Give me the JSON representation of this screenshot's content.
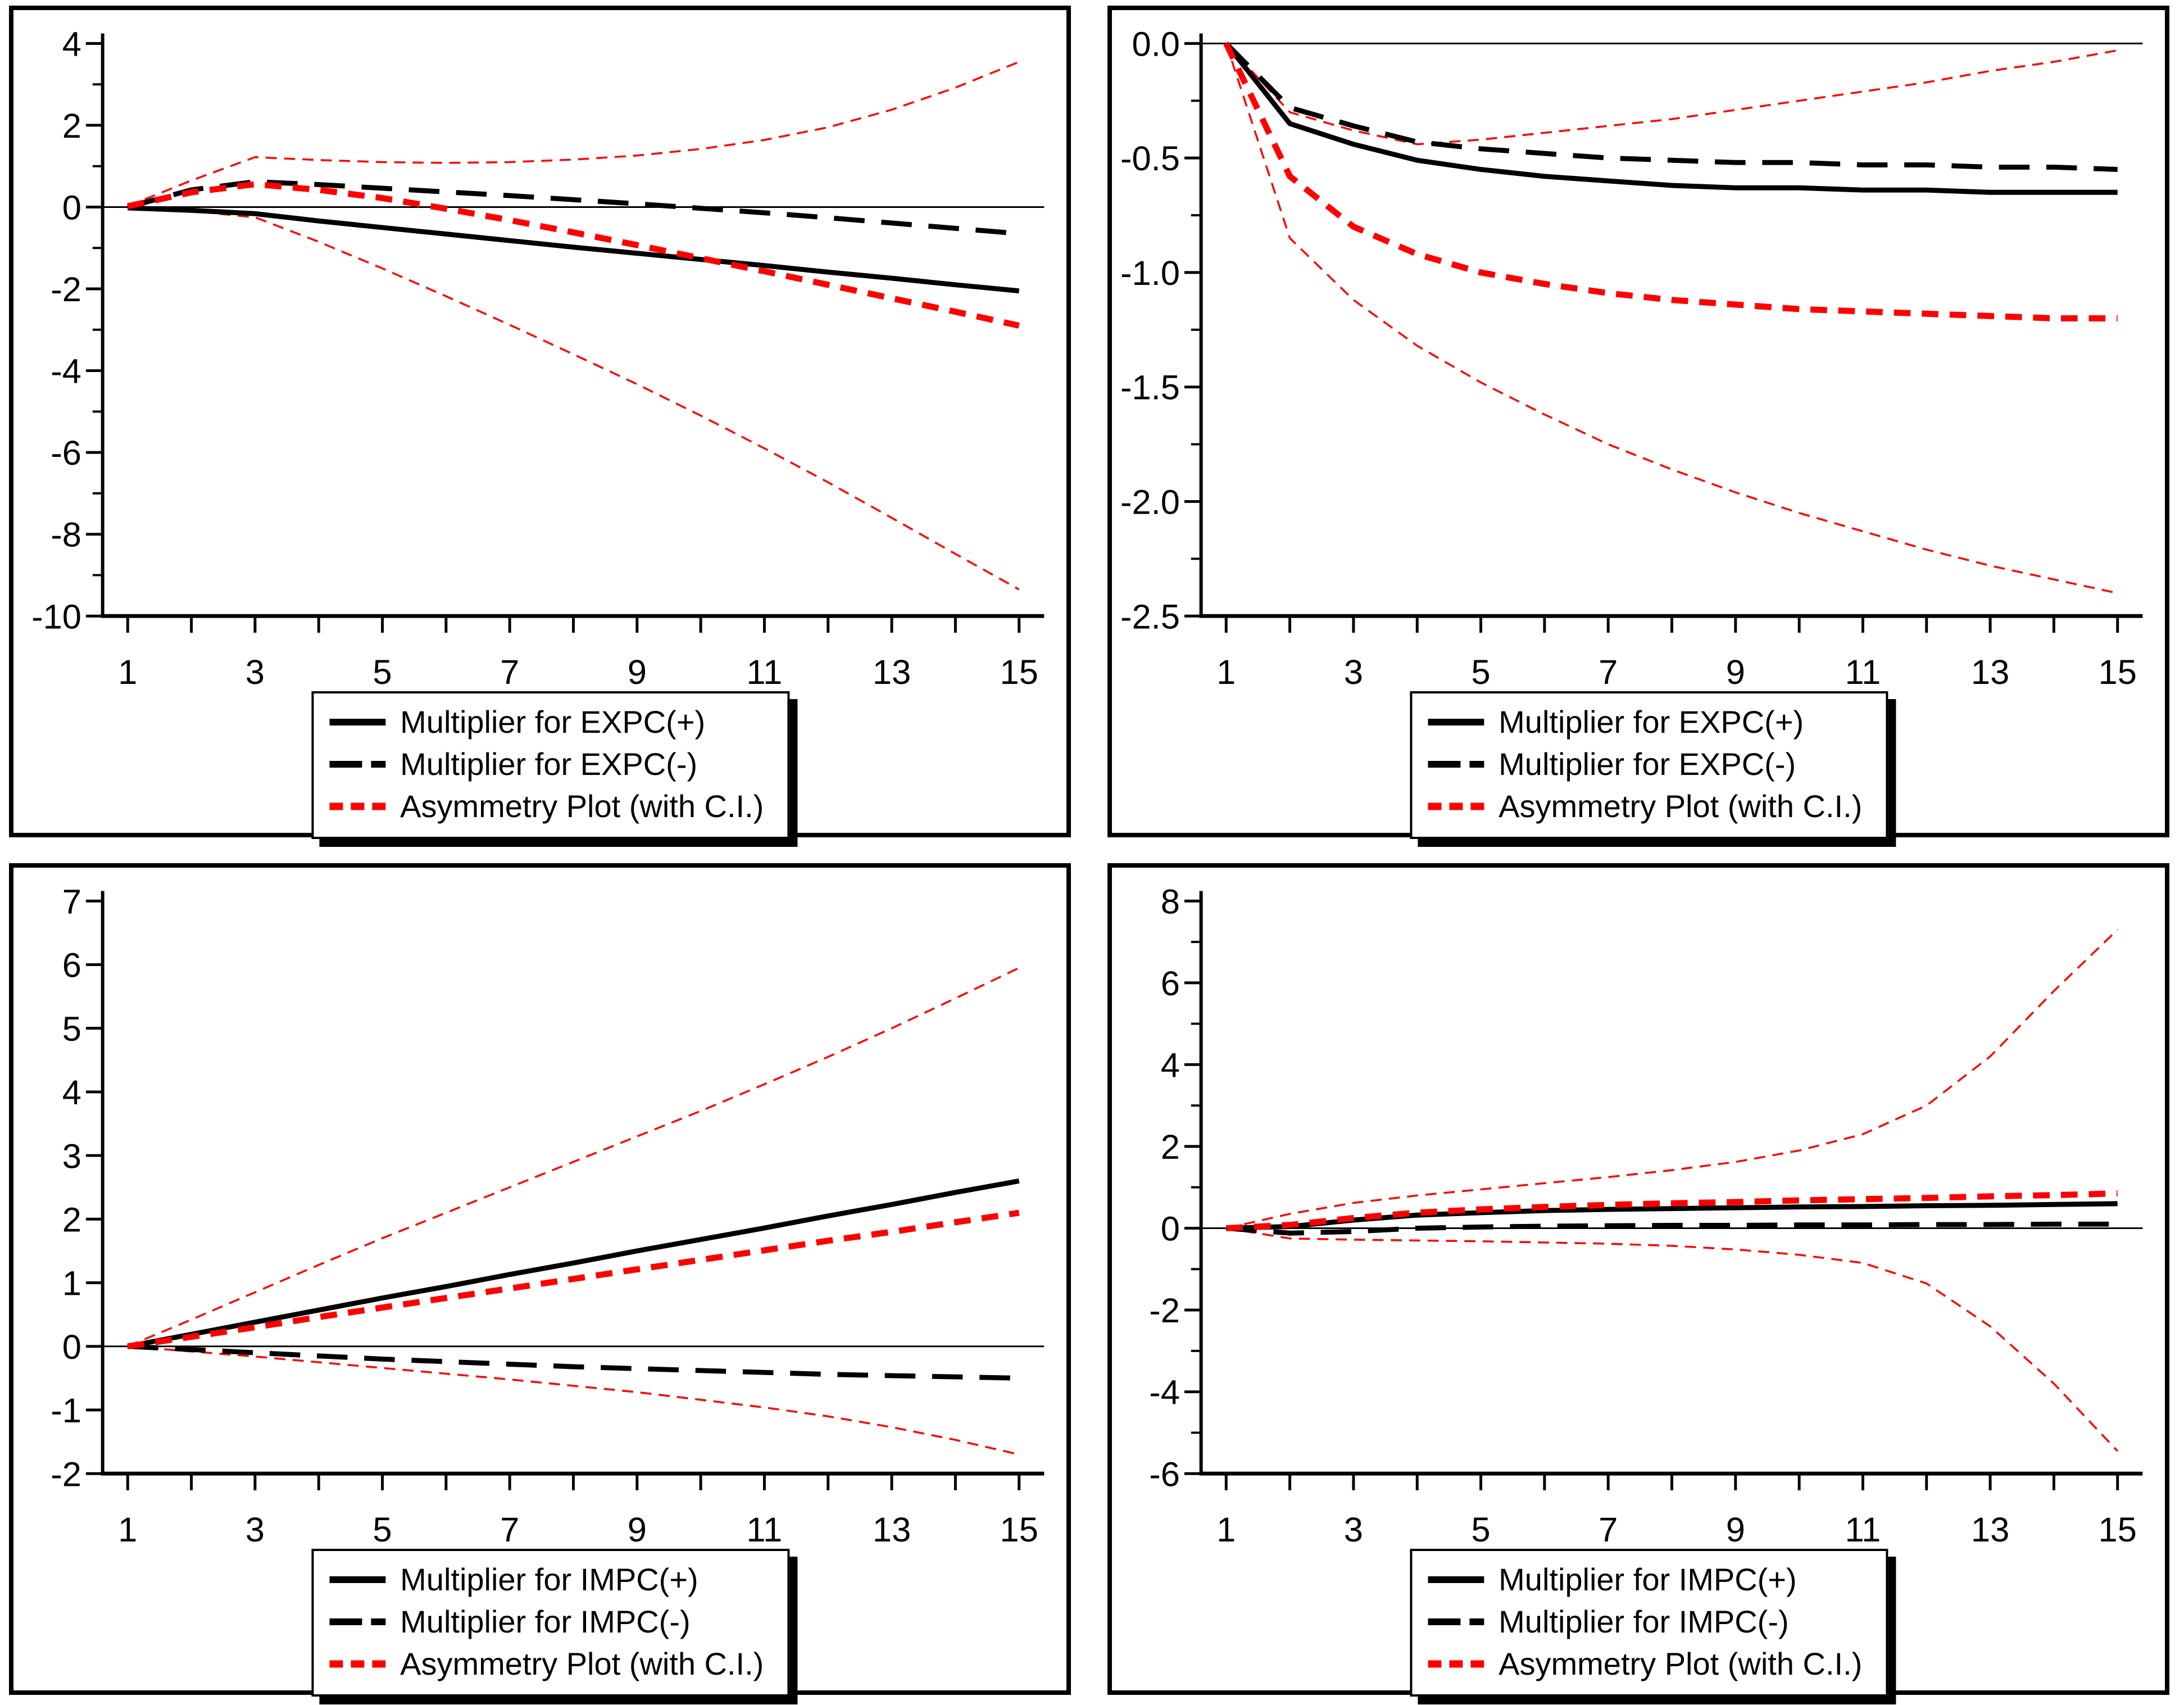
{
  "colors": {
    "red": "#FF0000",
    "black": "#000000",
    "background": "#FFFFFF"
  },
  "chart_data": [
    {
      "id": "expc-multiplier-level",
      "position": "top-left",
      "type": "line",
      "title": "",
      "xlabel": "",
      "ylabel": "",
      "x": [
        1,
        2,
        3,
        4,
        5,
        6,
        7,
        8,
        9,
        10,
        11,
        12,
        13,
        14,
        15
      ],
      "x_tick_labels": [
        "1",
        "3",
        "5",
        "7",
        "9",
        "11",
        "13",
        "15"
      ],
      "ylim": [
        -10,
        4
      ],
      "yticks": [
        4,
        2,
        0,
        -2,
        -4,
        -6,
        -8,
        -10
      ],
      "ytick_labels": [
        "4",
        "2",
        "0",
        "-2",
        "-4",
        "-6",
        "-8",
        "-10"
      ],
      "yticks_minor": [
        3,
        1,
        -1,
        -3,
        -5,
        -7,
        -9
      ],
      "grid": "off",
      "legend_position": "bottom-center",
      "legend": [
        {
          "label": "Multiplier for EXPC(+)",
          "style": "black-solid"
        },
        {
          "label": "Multiplier for EXPC(-)",
          "style": "black-dashed"
        },
        {
          "label": "Asymmetry Plot (with C.I.)",
          "style": "red-dashed"
        }
      ],
      "series": [
        {
          "name": "Multiplier for EXPC(+)",
          "style": "black-solid",
          "values": [
            -0.02,
            -0.08,
            -0.16,
            -0.34,
            -0.5,
            -0.66,
            -0.82,
            -0.98,
            -1.13,
            -1.28,
            -1.43,
            -1.59,
            -1.74,
            -1.9,
            -2.05
          ]
        },
        {
          "name": "Multiplier for EXPC(-)",
          "style": "black-dashed",
          "values": [
            0.0,
            0.42,
            0.62,
            0.55,
            0.46,
            0.37,
            0.28,
            0.18,
            0.08,
            -0.03,
            -0.14,
            -0.26,
            -0.39,
            -0.52,
            -0.65
          ]
        },
        {
          "name": "Asymmetry Plot",
          "style": "red-dashed",
          "values": [
            0.02,
            0.36,
            0.56,
            0.42,
            0.22,
            -0.04,
            -0.32,
            -0.62,
            -0.93,
            -1.25,
            -1.57,
            -1.9,
            -2.23,
            -2.56,
            -2.9
          ]
        },
        {
          "name": "C.I. upper band",
          "style": "red-thin-dashed",
          "values": [
            0.02,
            0.65,
            1.22,
            1.15,
            1.1,
            1.08,
            1.1,
            1.16,
            1.26,
            1.42,
            1.64,
            1.95,
            2.38,
            2.92,
            3.55
          ]
        },
        {
          "name": "C.I. lower band",
          "style": "red-thin-dashed",
          "values": [
            -0.02,
            -0.1,
            -0.25,
            -0.85,
            -1.5,
            -2.18,
            -2.88,
            -3.6,
            -4.33,
            -5.1,
            -5.9,
            -6.73,
            -7.6,
            -8.48,
            -9.35
          ]
        }
      ]
    },
    {
      "id": "expc-multiplier-cumulative",
      "position": "top-right",
      "type": "line",
      "title": "",
      "xlabel": "",
      "ylabel": "",
      "x": [
        1,
        2,
        3,
        4,
        5,
        6,
        7,
        8,
        9,
        10,
        11,
        12,
        13,
        14,
        15
      ],
      "x_tick_labels": [
        "1",
        "3",
        "5",
        "7",
        "9",
        "11",
        "13",
        "15"
      ],
      "ylim": [
        -2.5,
        0
      ],
      "yticks": [
        0.0,
        -0.5,
        -1.0,
        -1.5,
        -2.0,
        -2.5
      ],
      "ytick_labels": [
        "0.0",
        "-0.5",
        "-1.0",
        "-1.5",
        "-2.0",
        "-2.5"
      ],
      "yticks_minor": [
        -0.25,
        -0.75,
        -1.25,
        -1.75,
        -2.25
      ],
      "grid": "off",
      "legend_position": "bottom-center",
      "legend": [
        {
          "label": "Multiplier for EXPC(+)",
          "style": "black-solid"
        },
        {
          "label": "Multiplier for EXPC(-)",
          "style": "black-dashed"
        },
        {
          "label": "Asymmetry Plot (with C.I.)",
          "style": "red-dashed"
        }
      ],
      "series": [
        {
          "name": "Multiplier for EXPC(+)",
          "style": "black-solid",
          "values": [
            0.0,
            -0.35,
            -0.44,
            -0.51,
            -0.55,
            -0.58,
            -0.6,
            -0.62,
            -0.63,
            -0.63,
            -0.64,
            -0.64,
            -0.65,
            -0.65,
            -0.65
          ]
        },
        {
          "name": "Multiplier for EXPC(-)",
          "style": "black-dashed",
          "values": [
            0.0,
            -0.28,
            -0.36,
            -0.43,
            -0.46,
            -0.48,
            -0.5,
            -0.51,
            -0.52,
            -0.52,
            -0.53,
            -0.53,
            -0.54,
            -0.54,
            -0.55
          ]
        },
        {
          "name": "Asymmetry Plot",
          "style": "red-dashed",
          "values": [
            0.0,
            -0.58,
            -0.8,
            -0.92,
            -1.0,
            -1.05,
            -1.09,
            -1.12,
            -1.14,
            -1.16,
            -1.17,
            -1.18,
            -1.19,
            -1.2,
            -1.2
          ]
        },
        {
          "name": "C.I. upper band",
          "style": "red-thin-dashed",
          "values": [
            0.0,
            -0.3,
            -0.38,
            -0.44,
            -0.42,
            -0.39,
            -0.36,
            -0.33,
            -0.29,
            -0.25,
            -0.21,
            -0.17,
            -0.12,
            -0.08,
            -0.03
          ]
        },
        {
          "name": "C.I. lower band",
          "style": "red-thin-dashed",
          "values": [
            0.0,
            -0.85,
            -1.12,
            -1.32,
            -1.48,
            -1.62,
            -1.75,
            -1.86,
            -1.96,
            -2.05,
            -2.13,
            -2.21,
            -2.28,
            -2.34,
            -2.4
          ]
        }
      ]
    },
    {
      "id": "impc-multiplier-level",
      "position": "bottom-left",
      "type": "line",
      "title": "",
      "xlabel": "",
      "ylabel": "",
      "x": [
        1,
        2,
        3,
        4,
        5,
        6,
        7,
        8,
        9,
        10,
        11,
        12,
        13,
        14,
        15
      ],
      "x_tick_labels": [
        "1",
        "3",
        "5",
        "7",
        "9",
        "11",
        "13",
        "15"
      ],
      "ylim": [
        -2,
        7
      ],
      "yticks": [
        7,
        6,
        5,
        4,
        3,
        2,
        1,
        0,
        -1,
        -2
      ],
      "ytick_labels": [
        "7",
        "6",
        "5",
        "4",
        "3",
        "2",
        "1",
        "0",
        "-1",
        "-2"
      ],
      "yticks_minor": [],
      "grid": "off",
      "legend_position": "bottom-center",
      "legend": [
        {
          "label": "Multiplier for IMPC(+)",
          "style": "black-solid"
        },
        {
          "label": "Multiplier for IMPC(-)",
          "style": "black-dashed"
        },
        {
          "label": "Asymmetry Plot (with C.I.)",
          "style": "red-dashed"
        }
      ],
      "series": [
        {
          "name": "Multiplier for IMPC(+)",
          "style": "black-solid",
          "values": [
            0.0,
            0.19,
            0.38,
            0.57,
            0.76,
            0.94,
            1.13,
            1.31,
            1.5,
            1.68,
            1.86,
            2.05,
            2.23,
            2.42,
            2.6
          ]
        },
        {
          "name": "Multiplier for IMPC(-)",
          "style": "black-dashed",
          "values": [
            0.0,
            -0.05,
            -0.1,
            -0.15,
            -0.2,
            -0.24,
            -0.28,
            -0.32,
            -0.35,
            -0.38,
            -0.41,
            -0.44,
            -0.46,
            -0.48,
            -0.5
          ]
        },
        {
          "name": "Asymmetry Plot",
          "style": "red-dashed",
          "values": [
            0.0,
            0.15,
            0.3,
            0.46,
            0.61,
            0.76,
            0.91,
            1.06,
            1.21,
            1.36,
            1.51,
            1.66,
            1.8,
            1.95,
            2.1
          ]
        },
        {
          "name": "C.I. upper band",
          "style": "red-thin-dashed",
          "values": [
            0.0,
            0.42,
            0.85,
            1.28,
            1.7,
            2.1,
            2.5,
            2.9,
            3.3,
            3.7,
            4.12,
            4.55,
            5.0,
            5.47,
            5.95
          ]
        },
        {
          "name": "C.I. lower band",
          "style": "red-thin-dashed",
          "values": [
            0.0,
            -0.08,
            -0.16,
            -0.25,
            -0.34,
            -0.43,
            -0.52,
            -0.62,
            -0.72,
            -0.84,
            -0.96,
            -1.1,
            -1.27,
            -1.47,
            -1.7
          ]
        }
      ]
    },
    {
      "id": "impc-multiplier-cumulative",
      "position": "bottom-right",
      "type": "line",
      "title": "",
      "xlabel": "",
      "ylabel": "",
      "x": [
        1,
        2,
        3,
        4,
        5,
        6,
        7,
        8,
        9,
        10,
        11,
        12,
        13,
        14,
        15
      ],
      "x_tick_labels": [
        "1",
        "3",
        "5",
        "7",
        "9",
        "11",
        "13",
        "15"
      ],
      "ylim": [
        -6,
        8
      ],
      "yticks": [
        8,
        6,
        4,
        2,
        0,
        -2,
        -4,
        -6
      ],
      "ytick_labels": [
        "8",
        "6",
        "4",
        "2",
        "0",
        "-2",
        "-4",
        "-6"
      ],
      "yticks_minor": [
        7,
        5,
        3,
        1,
        -1,
        -3,
        -5
      ],
      "grid": "off",
      "legend_position": "bottom-center",
      "legend": [
        {
          "label": "Multiplier for IMPC(+)",
          "style": "black-solid"
        },
        {
          "label": "Multiplier for IMPC(-)",
          "style": "black-dashed"
        },
        {
          "label": "Asymmetry Plot (with C.I.)",
          "style": "red-dashed"
        }
      ],
      "series": [
        {
          "name": "Multiplier for IMPC(+)",
          "style": "black-solid",
          "values": [
            0.0,
            0.04,
            0.2,
            0.32,
            0.38,
            0.43,
            0.46,
            0.48,
            0.5,
            0.52,
            0.53,
            0.55,
            0.56,
            0.58,
            0.6
          ]
        },
        {
          "name": "Multiplier for IMPC(-)",
          "style": "black-dashed",
          "values": [
            0.0,
            -0.12,
            -0.08,
            0.0,
            0.03,
            0.05,
            0.06,
            0.07,
            0.07,
            0.08,
            0.08,
            0.09,
            0.09,
            0.1,
            0.1
          ]
        },
        {
          "name": "Asymmetry Plot",
          "style": "red-dashed",
          "values": [
            0.0,
            0.08,
            0.25,
            0.38,
            0.46,
            0.52,
            0.57,
            0.61,
            0.64,
            0.68,
            0.71,
            0.74,
            0.78,
            0.81,
            0.85
          ]
        },
        {
          "name": "C.I. upper band",
          "style": "red-thin-dashed",
          "values": [
            0.0,
            0.35,
            0.62,
            0.8,
            0.95,
            1.1,
            1.25,
            1.42,
            1.62,
            1.9,
            2.3,
            3.0,
            4.2,
            5.8,
            7.3
          ]
        },
        {
          "name": "C.I. lower band",
          "style": "red-thin-dashed",
          "values": [
            0.0,
            -0.25,
            -0.28,
            -0.3,
            -0.32,
            -0.35,
            -0.38,
            -0.43,
            -0.52,
            -0.65,
            -0.85,
            -1.35,
            -2.4,
            -3.8,
            -5.45
          ]
        }
      ]
    }
  ]
}
